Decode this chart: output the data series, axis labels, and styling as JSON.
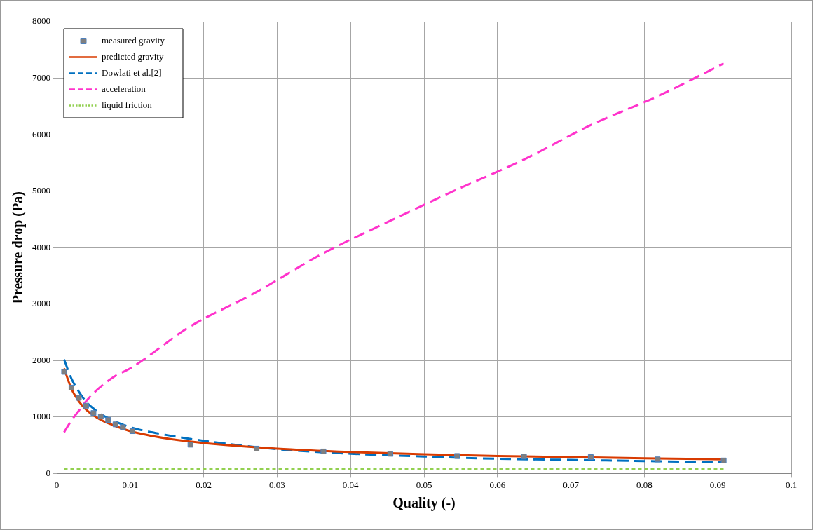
{
  "chart_data": {
    "type": "line",
    "xlabel": "Quality (-)",
    "ylabel": "Pressure drop (Pa)",
    "xlim": [
      0,
      0.1
    ],
    "xticks": [
      0,
      0.01,
      0.02,
      0.03,
      0.04,
      0.05,
      0.06,
      0.07,
      0.08,
      0.09,
      0.1
    ],
    "ylim": [
      0,
      8000
    ],
    "yticks": [
      0,
      1000,
      2000,
      3000,
      4000,
      5000,
      6000,
      7000,
      8000
    ],
    "grid": true,
    "legend": "top left",
    "series": [
      {
        "name": "measured gravity",
        "type": "scatter",
        "marker": "square",
        "color": "#7f7f7f",
        "x": [
          0.001,
          0.002,
          0.003,
          0.004,
          0.005,
          0.006,
          0.007,
          0.008,
          0.009,
          0.0103,
          0.0182,
          0.0272,
          0.0363,
          0.0454,
          0.0545,
          0.0636,
          0.0727,
          0.0818,
          0.0908
        ],
        "values": [
          1800,
          1520,
          1340,
          1200,
          1070,
          1010,
          950,
          870,
          820,
          750,
          510,
          440,
          390,
          350,
          310,
          300,
          290,
          250,
          230
        ]
      },
      {
        "name": "predicted gravity",
        "line_style": "solid",
        "marker": "none",
        "color": "#d83b01",
        "x": [
          0.001,
          0.002,
          0.003,
          0.004,
          0.005,
          0.006,
          0.008,
          0.01,
          0.015,
          0.02,
          0.03,
          0.04,
          0.05,
          0.06,
          0.07,
          0.08,
          0.0908
        ],
        "values": [
          1860,
          1500,
          1280,
          1130,
          1030,
          950,
          840,
          750,
          620,
          540,
          440,
          380,
          340,
          310,
          290,
          270,
          250
        ]
      },
      {
        "name": "Dowlati et al.[2]",
        "line_style": "dashed",
        "marker": "none",
        "color": "#0070c0",
        "x": [
          0.001,
          0.002,
          0.003,
          0.004,
          0.005,
          0.006,
          0.008,
          0.01,
          0.015,
          0.02,
          0.03,
          0.04,
          0.05,
          0.06,
          0.07,
          0.08,
          0.0908
        ],
        "values": [
          2020,
          1680,
          1450,
          1270,
          1150,
          1050,
          920,
          820,
          680,
          580,
          430,
          350,
          300,
          260,
          240,
          220,
          200
        ]
      },
      {
        "name": "acceleration",
        "line_style": "dashed",
        "marker": "none",
        "color": "#ff33cc",
        "x": [
          0.001,
          0.002,
          0.003,
          0.004,
          0.005,
          0.006,
          0.008,
          0.01,
          0.018,
          0.027,
          0.036,
          0.045,
          0.054,
          0.0636,
          0.0727,
          0.0818,
          0.0908
        ],
        "values": [
          730,
          940,
          1110,
          1280,
          1420,
          1540,
          1730,
          1860,
          2590,
          3200,
          3880,
          4450,
          5000,
          5560,
          6170,
          6680,
          7260
        ]
      },
      {
        "name": "liquid friction",
        "line_style": "dotted",
        "marker": "none",
        "color": "#92d050",
        "x": [
          0.001,
          0.0908
        ],
        "values": [
          80,
          80
        ]
      }
    ]
  }
}
